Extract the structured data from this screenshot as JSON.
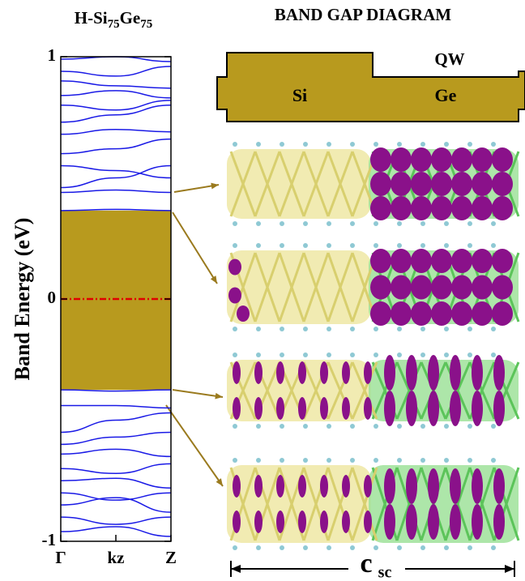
{
  "chart_data": {
    "type": "line",
    "title_parts": [
      "H-Si",
      "75",
      "Ge",
      "75"
    ],
    "ylabel": "Band Energy (eV)",
    "diagram": {
      "title": "BAND GAP DIAGRAM",
      "well_label": "QW",
      "left_label": "Si",
      "right_label": "Ge",
      "length_symbol": "c",
      "length_subscript": "sc"
    },
    "x": [
      0,
      0.5,
      1
    ],
    "xlim": [
      0,
      1
    ],
    "xticks": [
      {
        "value": 0,
        "label": "Γ"
      },
      {
        "value": 0.5,
        "label": "kz"
      },
      {
        "value": 1,
        "label": "Z"
      }
    ],
    "ylim": [
      -1,
      1
    ],
    "yticks": [
      -1,
      0,
      1
    ],
    "color": "#1a1ae6",
    "band_gap": {
      "vbm": -0.375,
      "cbm": 0.365,
      "color": "#b89a1e"
    },
    "fermi_level": 0,
    "fermi_color": "#e00000",
    "series": [
      {
        "values": [
          0.365,
          0.37,
          0.365
        ]
      },
      {
        "values": [
          0.44,
          0.45,
          0.44
        ]
      },
      {
        "values": [
          0.46,
          0.5,
          0.55
        ]
      },
      {
        "values": [
          0.55,
          0.53,
          0.5
        ]
      },
      {
        "values": [
          0.6,
          0.62,
          0.66
        ]
      },
      {
        "values": [
          0.68,
          0.7,
          0.69
        ]
      },
      {
        "values": [
          0.73,
          0.76,
          0.8
        ]
      },
      {
        "values": [
          0.8,
          0.78,
          0.82
        ]
      },
      {
        "values": [
          0.84,
          0.86,
          0.83
        ]
      },
      {
        "values": [
          0.9,
          0.88,
          0.87
        ]
      },
      {
        "values": [
          0.94,
          0.92,
          0.96
        ]
      },
      {
        "values": [
          0.99,
          1.0,
          0.98
        ]
      },
      {
        "values": [
          -0.375,
          -0.38,
          -0.375
        ]
      },
      {
        "values": [
          -0.44,
          -0.44,
          -0.45
        ]
      },
      {
        "values": [
          -0.55,
          -0.5,
          -0.47
        ]
      },
      {
        "values": [
          -0.6,
          -0.57,
          -0.55
        ]
      },
      {
        "values": [
          -0.64,
          -0.62,
          -0.65
        ]
      },
      {
        "values": [
          -0.7,
          -0.72,
          -0.68
        ]
      },
      {
        "values": [
          -0.75,
          -0.74,
          -0.78
        ]
      },
      {
        "values": [
          -0.8,
          -0.83,
          -0.8
        ]
      },
      {
        "values": [
          -0.85,
          -0.82,
          -0.88
        ]
      },
      {
        "values": [
          -0.9,
          -0.93,
          -0.9
        ]
      },
      {
        "values": [
          -0.96,
          -0.94,
          -0.98
        ]
      }
    ]
  }
}
